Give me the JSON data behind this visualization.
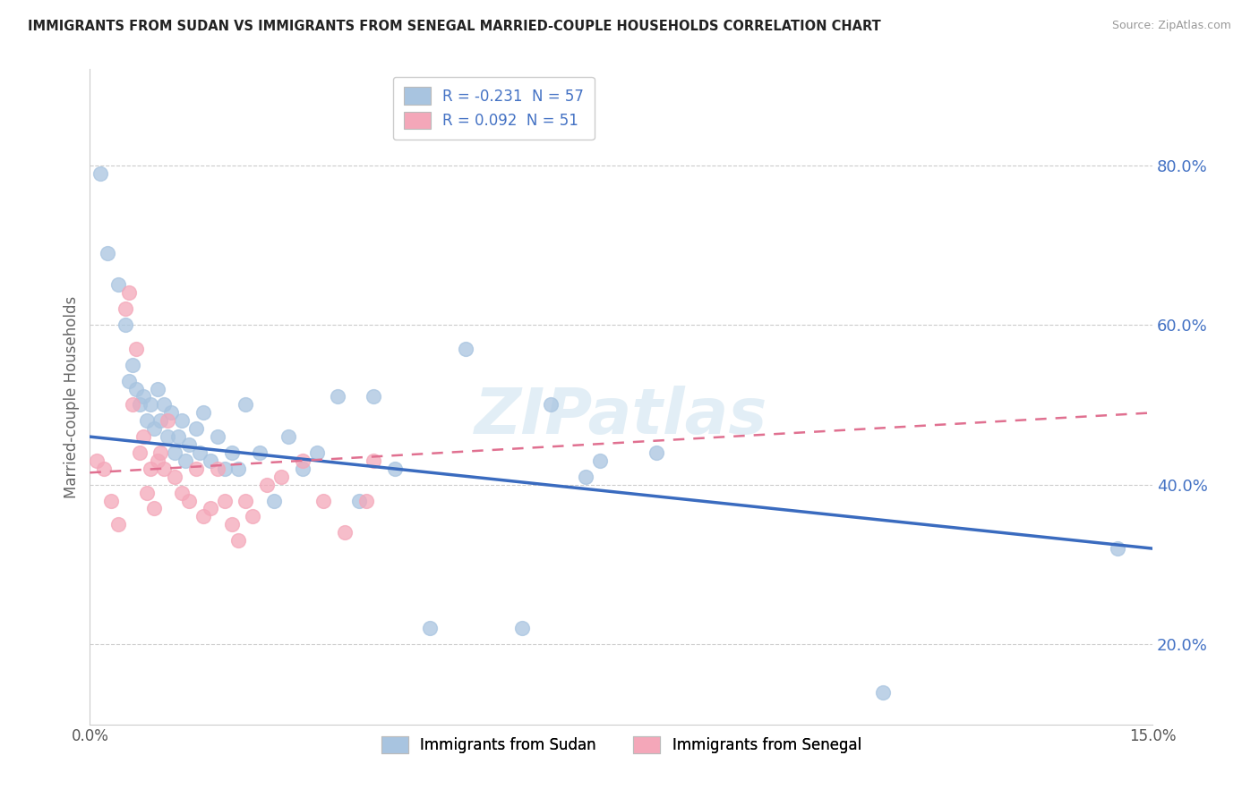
{
  "title": "IMMIGRANTS FROM SUDAN VS IMMIGRANTS FROM SENEGAL MARRIED-COUPLE HOUSEHOLDS CORRELATION CHART",
  "source": "Source: ZipAtlas.com",
  "ylabel": "Married-couple Households",
  "xlim": [
    0.0,
    15.0
  ],
  "ylim": [
    10.0,
    92.0
  ],
  "legend_sudan": "R = -0.231  N = 57",
  "legend_senegal": "R = 0.092  N = 51",
  "legend_label_sudan": "Immigrants from Sudan",
  "legend_label_senegal": "Immigrants from Senegal",
  "sudan_color": "#a8c4e0",
  "senegal_color": "#f4a7b9",
  "sudan_line_color": "#3a6bbf",
  "senegal_line_color": "#e07090",
  "background_color": "#ffffff",
  "grid_color": "#cccccc",
  "ytick_color": "#4472c4",
  "ytick_vals": [
    20,
    40,
    60,
    80
  ],
  "sudan_points_x": [
    0.15,
    0.25,
    0.4,
    0.5,
    0.55,
    0.6,
    0.65,
    0.7,
    0.75,
    0.8,
    0.85,
    0.9,
    0.95,
    1.0,
    1.05,
    1.1,
    1.15,
    1.2,
    1.25,
    1.3,
    1.35,
    1.4,
    1.5,
    1.55,
    1.6,
    1.7,
    1.8,
    1.9,
    2.0,
    2.1,
    2.2,
    2.4,
    2.6,
    2.8,
    3.0,
    3.2,
    3.5,
    3.8,
    4.0,
    4.3,
    4.8,
    5.3,
    6.1,
    6.5,
    7.0,
    7.2,
    8.0,
    11.2,
    14.5
  ],
  "sudan_points_y": [
    79,
    69,
    65,
    60,
    53,
    55,
    52,
    50,
    51,
    48,
    50,
    47,
    52,
    48,
    50,
    46,
    49,
    44,
    46,
    48,
    43,
    45,
    47,
    44,
    49,
    43,
    46,
    42,
    44,
    42,
    50,
    44,
    38,
    46,
    42,
    44,
    51,
    38,
    51,
    42,
    22,
    57,
    22,
    50,
    41,
    43,
    44,
    14,
    32
  ],
  "senegal_points_x": [
    0.1,
    0.2,
    0.3,
    0.4,
    0.5,
    0.55,
    0.6,
    0.65,
    0.7,
    0.75,
    0.8,
    0.85,
    0.9,
    0.95,
    1.0,
    1.05,
    1.1,
    1.2,
    1.3,
    1.4,
    1.5,
    1.6,
    1.7,
    1.8,
    1.9,
    2.0,
    2.1,
    2.2,
    2.3,
    2.5,
    2.7,
    3.0,
    3.3,
    3.6,
    3.9,
    4.0
  ],
  "senegal_points_y": [
    43,
    42,
    38,
    35,
    62,
    64,
    50,
    57,
    44,
    46,
    39,
    42,
    37,
    43,
    44,
    42,
    48,
    41,
    39,
    38,
    42,
    36,
    37,
    42,
    38,
    35,
    33,
    38,
    36,
    40,
    41,
    43,
    38,
    34,
    38,
    43
  ],
  "sudan_line_x": [
    0.0,
    15.0
  ],
  "sudan_line_y": [
    46.0,
    32.0
  ],
  "senegal_line_x": [
    0.0,
    15.0
  ],
  "senegal_line_y": [
    41.5,
    49.0
  ]
}
